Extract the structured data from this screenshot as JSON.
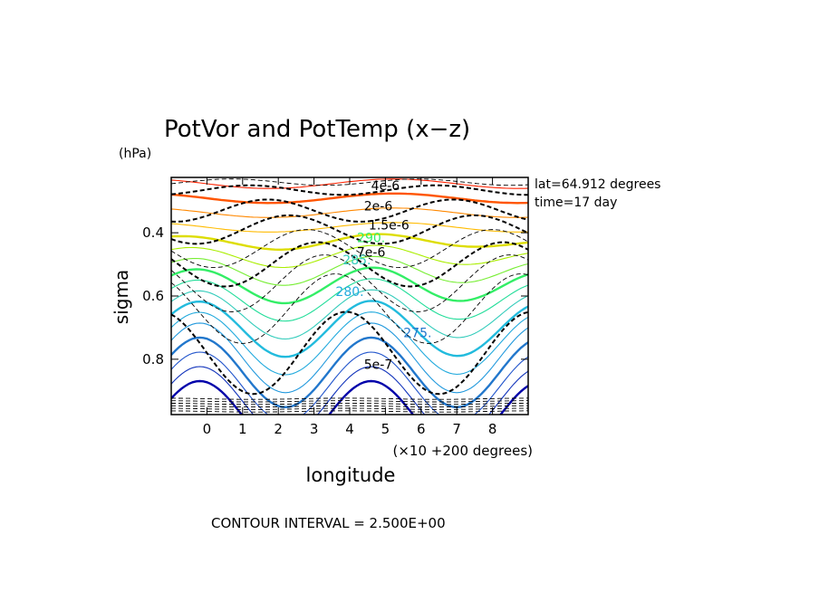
{
  "chart_data": {
    "type": "contour",
    "title": "PotVor and PotTemp (x−z)",
    "unit_label": "(hPa)",
    "xlabel": "longitude",
    "x_offset_label": "(×10 +200 degrees)",
    "ylabel": "sigma",
    "xticks": [
      "0",
      "1",
      "2",
      "3",
      "4",
      "5",
      "6",
      "7",
      "8"
    ],
    "yticks": [
      "0.4",
      "0.6",
      "0.8"
    ],
    "xlim": [
      -1,
      9
    ],
    "ylim": [
      0.975,
      0.225
    ],
    "info": [
      "lat=64.912 degrees",
      "time=17 day"
    ],
    "footer": "CONTOUR INTERVAL = 2.500E+00",
    "pottemp_labels": [
      {
        "text": "290.",
        "x": 4.6,
        "y": 0.43,
        "color": "#33ee66"
      },
      {
        "text": "285.",
        "x": 4.2,
        "y": 0.5,
        "color": "#33ccbb"
      },
      {
        "text": "280.",
        "x": 4.0,
        "y": 0.6,
        "color": "#22aadd"
      },
      {
        "text": "275.",
        "x": 5.9,
        "y": 0.73,
        "color": "#2277cc"
      }
    ],
    "potvor_labels": [
      {
        "text": "4e-6",
        "x": 5.0,
        "y": 0.265
      },
      {
        "text": "2e-6",
        "x": 4.8,
        "y": 0.33
      },
      {
        "text": "1.5e-6",
        "x": 5.1,
        "y": 0.39
      },
      {
        "text": "7e-6",
        "x": 4.6,
        "y": 0.475
      },
      {
        "text": "5e-7",
        "x": 4.8,
        "y": 0.83
      }
    ]
  }
}
